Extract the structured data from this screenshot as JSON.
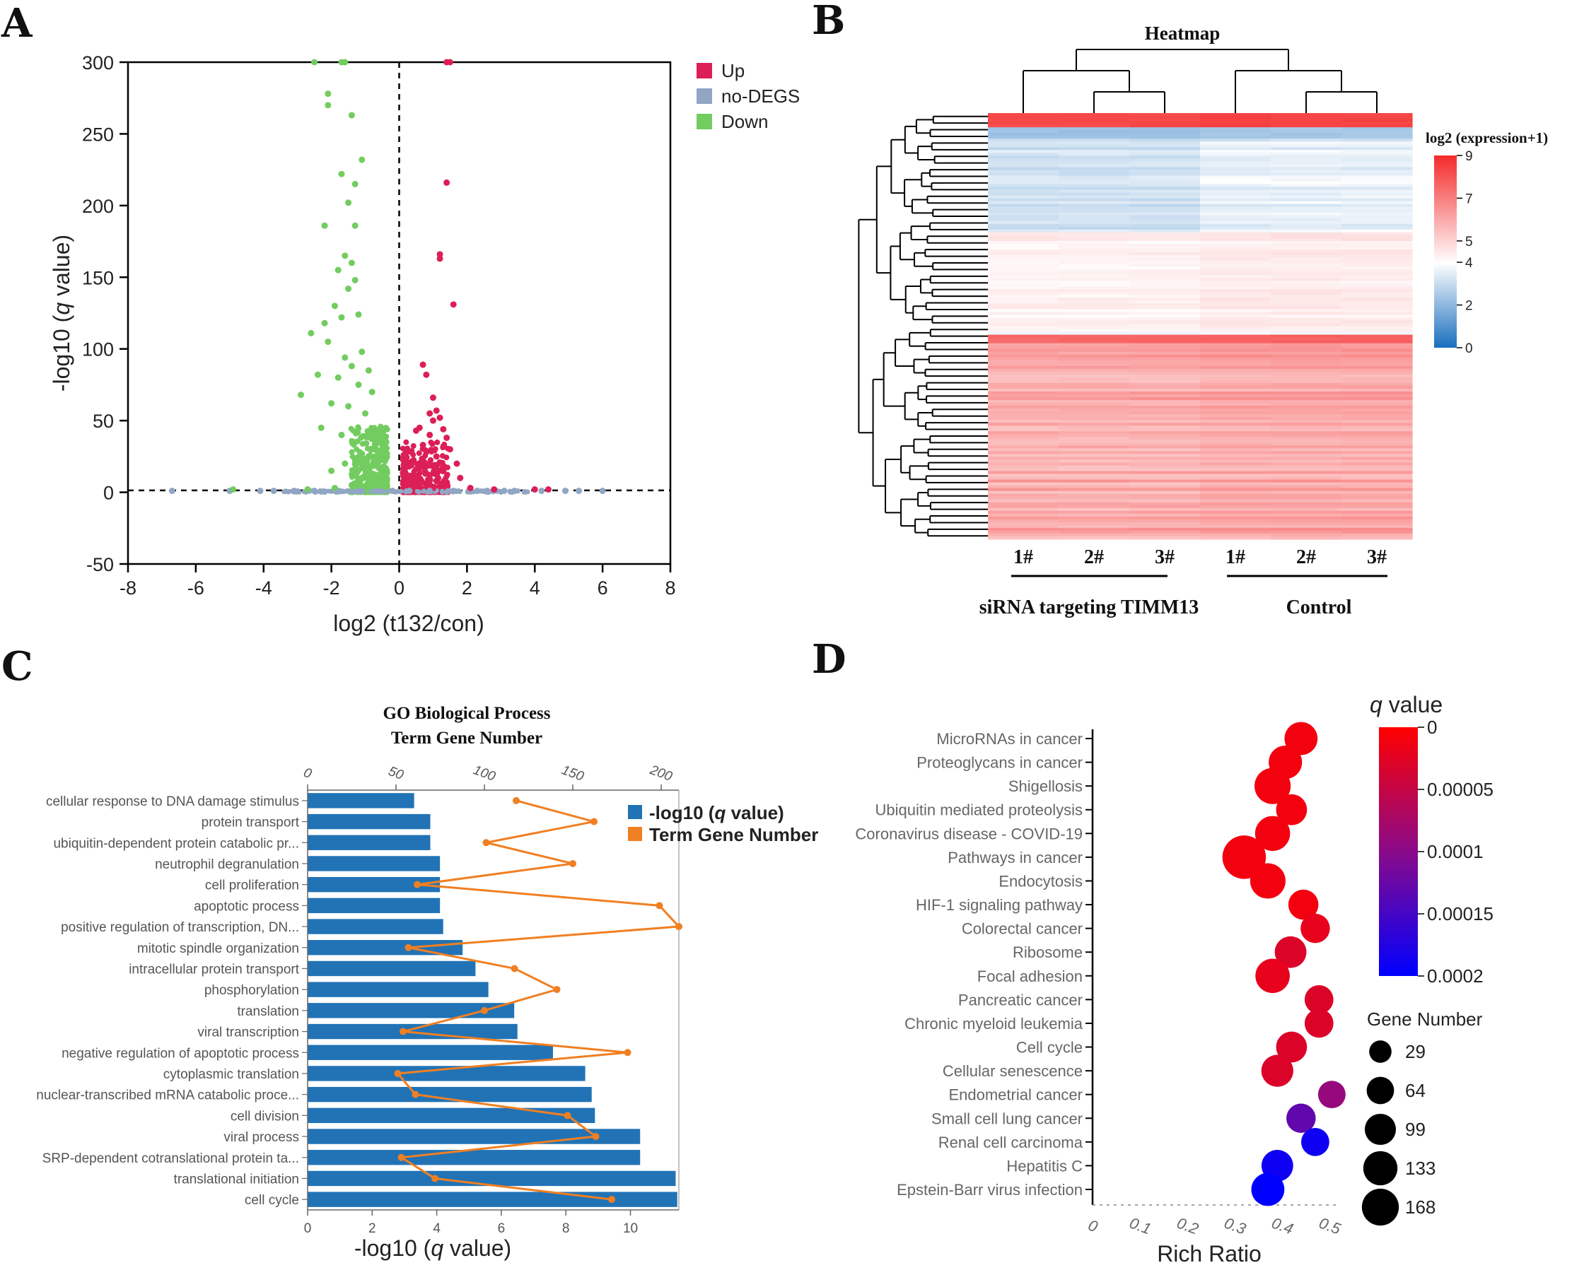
{
  "panels": {
    "A": "A",
    "B": "B",
    "C": "C",
    "D": "D"
  },
  "colors": {
    "up": "#dc1f56",
    "nodeg": "#91a6c4",
    "down": "#72cc5f",
    "bar": "#2173b5",
    "line": "#f07f22"
  },
  "chart_data": [
    {
      "type": "scatter",
      "panel": "A",
      "title": "",
      "xlabel": "log2 (t132/con)",
      "ylabel": "-log10 (q value)",
      "xlim": [
        -8,
        8
      ],
      "ylim": [
        -50,
        300
      ],
      "x_ticks": [
        -8,
        -6,
        -4,
        -2,
        0,
        2,
        4,
        6,
        8
      ],
      "y_ticks": [
        -50,
        0,
        50,
        100,
        150,
        200,
        250,
        300
      ],
      "thresholds": {
        "x": 0,
        "y": 1.3
      },
      "legend": [
        "Up",
        "no-DEGS",
        "Down"
      ],
      "series": [
        {
          "name": "Up",
          "points": [
            [
              1.4,
              300
            ],
            [
              1.5,
              300
            ],
            [
              1.4,
              216
            ],
            [
              1.2,
              166
            ],
            [
              1.2,
              163
            ],
            [
              1.6,
              131
            ],
            [
              0.7,
              89
            ],
            [
              0.8,
              82
            ],
            [
              1.0,
              66
            ],
            [
              1.1,
              57
            ],
            [
              0.9,
              55
            ],
            [
              1.2,
              52
            ],
            [
              1.0,
              50
            ],
            [
              0.6,
              45
            ],
            [
              1.3,
              44
            ],
            [
              0.5,
              43
            ],
            [
              0.9,
              40
            ],
            [
              1.4,
              38
            ],
            [
              1.5,
              30
            ],
            [
              0.7,
              33
            ],
            [
              0.8,
              28
            ],
            [
              1.1,
              25
            ],
            [
              1.7,
              20
            ],
            [
              0.4,
              22
            ],
            [
              0.6,
              18
            ],
            [
              1.3,
              15
            ],
            [
              0.9,
              12
            ],
            [
              1.8,
              10
            ],
            [
              0.5,
              8
            ],
            [
              1.2,
              6
            ],
            [
              2.1,
              3
            ],
            [
              2.8,
              2
            ],
            [
              4.0,
              2
            ],
            [
              4.4,
              2
            ],
            [
              0.3,
              4
            ],
            [
              1.0,
              3
            ]
          ]
        },
        {
          "name": "no-DEGS",
          "points": [
            [
              -6.7,
              1
            ],
            [
              -5.0,
              1
            ],
            [
              -4.1,
              1
            ],
            [
              -3.7,
              1
            ],
            [
              -3.1,
              1
            ],
            [
              -2.5,
              1
            ],
            [
              -1.8,
              1
            ],
            [
              -1.2,
              1
            ],
            [
              -0.6,
              1
            ],
            [
              -0.2,
              1
            ],
            [
              0.3,
              1
            ],
            [
              0.9,
              1
            ],
            [
              1.6,
              1
            ],
            [
              2.3,
              1
            ],
            [
              2.6,
              1
            ],
            [
              3.1,
              1
            ],
            [
              3.4,
              1
            ],
            [
              4.2,
              1
            ],
            [
              4.9,
              1
            ],
            [
              5.3,
              1
            ],
            [
              6.0,
              1
            ]
          ]
        },
        {
          "name": "Down",
          "points": [
            [
              -2.5,
              300
            ],
            [
              -1.7,
              300
            ],
            [
              -1.6,
              300
            ],
            [
              -2.1,
              278
            ],
            [
              -2.1,
              270
            ],
            [
              -1.4,
              263
            ],
            [
              -1.1,
              232
            ],
            [
              -1.7,
              222
            ],
            [
              -1.3,
              215
            ],
            [
              -1.5,
              202
            ],
            [
              -2.2,
              186
            ],
            [
              -1.3,
              186
            ],
            [
              -1.6,
              165
            ],
            [
              -1.4,
              160
            ],
            [
              -1.8,
              155
            ],
            [
              -1.3,
              148
            ],
            [
              -1.5,
              142
            ],
            [
              -1.9,
              130
            ],
            [
              -2.6,
              111
            ],
            [
              -2.2,
              118
            ],
            [
              -1.2,
              124
            ],
            [
              -1.7,
              122
            ],
            [
              -2.1,
              105
            ],
            [
              -1.1,
              98
            ],
            [
              -1.6,
              94
            ],
            [
              -2.9,
              68
            ],
            [
              -2.4,
              82
            ],
            [
              -1.4,
              88
            ],
            [
              -0.9,
              85
            ],
            [
              -1.8,
              80
            ],
            [
              -1.2,
              75
            ],
            [
              -2.0,
              62
            ],
            [
              -0.8,
              70
            ],
            [
              -1.5,
              60
            ],
            [
              -1.0,
              55
            ],
            [
              -2.3,
              45
            ],
            [
              -1.7,
              40
            ],
            [
              -1.3,
              35
            ],
            [
              -0.7,
              30
            ],
            [
              -0.9,
              25
            ],
            [
              -1.6,
              20
            ],
            [
              -2.0,
              15
            ],
            [
              -1.1,
              10
            ],
            [
              -0.5,
              8
            ],
            [
              -1.4,
              5
            ],
            [
              -0.8,
              4
            ],
            [
              -4.9,
              2
            ],
            [
              -2.7,
              2
            ],
            [
              -1.9,
              3
            ]
          ]
        }
      ]
    },
    {
      "type": "heatmap",
      "panel": "B",
      "title": "Heatmap",
      "colorbar_label": "log2 (expression+1)",
      "colorbar_ticks": [
        0,
        2,
        4,
        5,
        7,
        9
      ],
      "columns": [
        "1#",
        "2#",
        "3#",
        "1#",
        "2#",
        "3#"
      ],
      "groups": [
        "siRNA targeting TIMM13",
        "Control"
      ]
    },
    {
      "type": "bar",
      "panel": "C",
      "title": [
        "GO Biological Process",
        "Term Gene Number"
      ],
      "xlabel": "-log10 (q value)",
      "xlim": [
        0,
        11.5
      ],
      "x_ticks": [
        0,
        2,
        4,
        6,
        8,
        10
      ],
      "top_axis_ticks": [
        0,
        50,
        100,
        150,
        200
      ],
      "top_axis_lim": [
        0,
        210
      ],
      "legend": [
        "-log10 (q value)",
        "Term Gene Number"
      ],
      "categories": [
        "cellular response to DNA damage stimulus",
        "protein transport",
        "ubiquitin-dependent protein catabolic pr...",
        "neutrophil degranulation",
        "cell proliferation",
        "apoptotic process",
        "positive regulation of transcription, DN...",
        "mitotic spindle organization",
        "intracellular protein transport",
        "phosphorylation",
        "translation",
        "viral transcription",
        "negative regulation of apoptotic process",
        "cytoplasmic translation",
        "nuclear-transcribed mRNA catabolic proce...",
        "cell division",
        "viral process",
        "SRP-dependent cotranslational protein ta...",
        "translational initiation",
        "cell cycle"
      ],
      "series": [
        {
          "name": "-log10 (q value)",
          "values": [
            3.3,
            3.8,
            3.8,
            4.1,
            4.1,
            4.1,
            4.2,
            4.8,
            5.2,
            5.6,
            6.4,
            6.5,
            7.6,
            8.6,
            8.8,
            8.9,
            10.3,
            10.3,
            11.4,
            11.45
          ]
        },
        {
          "name": "Term Gene Number",
          "values": [
            118,
            162,
            101,
            150,
            62,
            199,
            210,
            57,
            117,
            141,
            100,
            54,
            181,
            51,
            61,
            147,
            163,
            53,
            72,
            172
          ]
        }
      ]
    },
    {
      "type": "scatter",
      "panel": "D",
      "title": "",
      "xlabel": "Rich Ratio",
      "xlim": [
        0,
        0.5
      ],
      "x_ticks": [
        0,
        0.1,
        0.2,
        0.3,
        0.4,
        0.5
      ],
      "x_tick_labels": [
        "0",
        "0.1",
        "0.2",
        "0.3",
        "0.4",
        "0.5"
      ],
      "colorbar_title": "q value",
      "colorbar_ticks": [
        "0",
        "0.00005",
        "0.0001",
        "0.00015",
        "0.0002"
      ],
      "size_legend_title": "Gene Number",
      "size_legend": [
        29,
        64,
        99,
        133,
        168
      ],
      "categories": [
        "MicroRNAs in cancer",
        "Proteoglycans in cancer",
        "Shigellosis",
        "Ubiquitin mediated proteolysis",
        "Coronavirus disease - COVID-19",
        "Pathways in cancer",
        "Endocytosis",
        "HIF-1 signaling pathway",
        "Colorectal cancer",
        "Ribosome",
        "Focal adhesion",
        "Pancreatic cancer",
        "Chronic myeloid leukemia",
        "Cell cycle",
        "Cellular senescence",
        "Endometrial cancer",
        "Small cell lung cancer",
        "Renal cell carcinoma",
        "Hepatitis C",
        "Epstein-Barr virus infection"
      ],
      "points": [
        {
          "x": 0.44,
          "gene_number": 70,
          "q": 1e-05
        },
        {
          "x": 0.407,
          "gene_number": 72,
          "q": 1e-05
        },
        {
          "x": 0.38,
          "gene_number": 95,
          "q": 1e-05
        },
        {
          "x": 0.42,
          "gene_number": 55,
          "q": 1e-05
        },
        {
          "x": 0.38,
          "gene_number": 85,
          "q": 1e-05
        },
        {
          "x": 0.32,
          "gene_number": 168,
          "q": 1e-05
        },
        {
          "x": 0.37,
          "gene_number": 88,
          "q": 1e-05
        },
        {
          "x": 0.445,
          "gene_number": 50,
          "q": 1e-05
        },
        {
          "x": 0.47,
          "gene_number": 45,
          "q": 2e-05
        },
        {
          "x": 0.418,
          "gene_number": 60,
          "q": 3e-05
        },
        {
          "x": 0.38,
          "gene_number": 80,
          "q": 2e-05
        },
        {
          "x": 0.478,
          "gene_number": 42,
          "q": 3e-05
        },
        {
          "x": 0.478,
          "gene_number": 42,
          "q": 3e-05
        },
        {
          "x": 0.42,
          "gene_number": 55,
          "q": 3e-05
        },
        {
          "x": 0.39,
          "gene_number": 62,
          "q": 3e-05
        },
        {
          "x": 0.505,
          "gene_number": 35,
          "q": 9e-05
        },
        {
          "x": 0.44,
          "gene_number": 45,
          "q": 0.00013
        },
        {
          "x": 0.47,
          "gene_number": 38,
          "q": 0.00019
        },
        {
          "x": 0.39,
          "gene_number": 60,
          "q": 0.00019
        },
        {
          "x": 0.37,
          "gene_number": 70,
          "q": 0.0002
        }
      ]
    }
  ]
}
